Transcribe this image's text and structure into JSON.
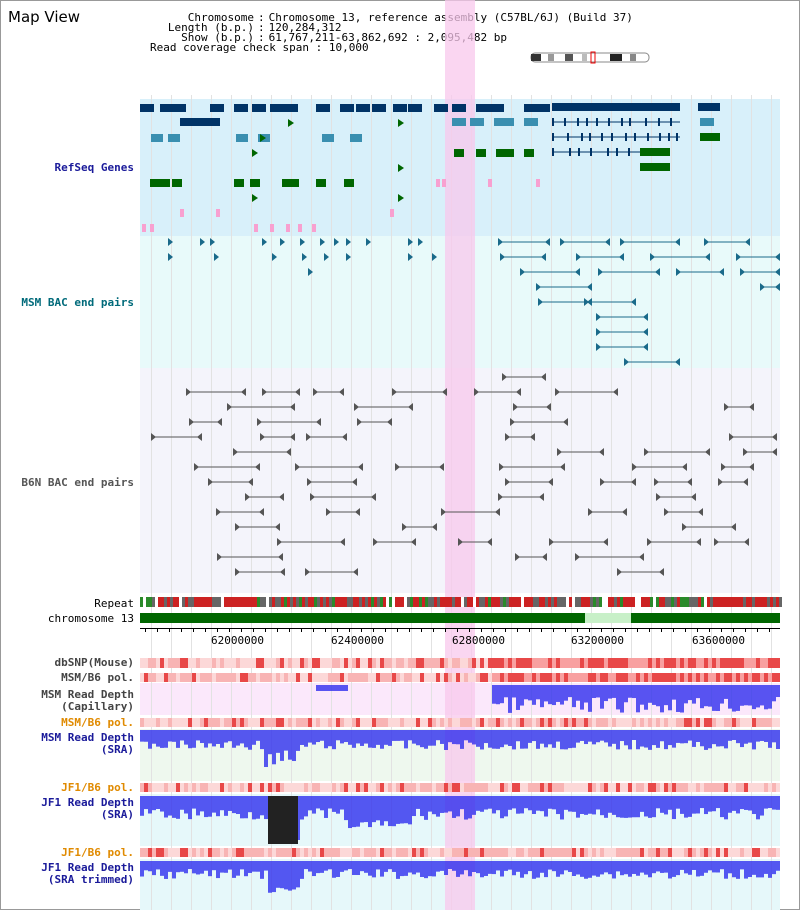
{
  "header": {
    "title": "Map View",
    "chromosome_label": "Chromosome",
    "chromosome_value": "Chromosome 13, reference assembly (C57BL/6J) (Build 37)",
    "length_label": "Length (b.p.)",
    "length_value": "120,284,312",
    "show_label": "Show (b.p.)",
    "show_value": "61,767,211-63,862,692 : 2,095,482 bp",
    "span_label": "Read coverage check span",
    "span_value": "10,000"
  },
  "tracks": {
    "refseq": "RefSeq Genes",
    "msm_bac": "MSM BAC end pairs",
    "b6n_bac": "B6N BAC end pairs",
    "repeat": "Repeat",
    "chromosome": "chromosome 13",
    "dbsnp": "dbSNP(Mouse)",
    "msm_b6_pol_1": "MSM/B6 pol.",
    "msm_depth_cap_1": "MSM Read Depth",
    "msm_depth_cap_2": "(Capillary)",
    "msm_b6_pol_2": "MSM/B6 pol.",
    "msm_depth_sra_1": "MSM Read Depth",
    "msm_depth_sra_2": "(SRA)",
    "jf1_b6_pol_1": "JF1/B6 pol.",
    "jf1_depth_sra_1": "JF1 Read Depth",
    "jf1_depth_sra_2": "(SRA)",
    "jf1_b6_pol_2": "JF1/B6 pol.",
    "jf1_depth_trim_1": "JF1 Read Depth",
    "jf1_depth_trim_2": "(SRA trimmed)"
  },
  "axis": {
    "ticks": [
      "62000000",
      "62400000",
      "62800000",
      "63200000",
      "63600000"
    ]
  },
  "colors": {
    "refseq_bg": "#d8f0fa",
    "bac_bg": "#e8fafa",
    "highlight": "#f8c8ec",
    "gene_dark": "#003366",
    "gene_mid": "#3a8fb0",
    "gene_green": "#006600",
    "chromosome": "#006600",
    "depth_blue": "#2222ee"
  }
}
